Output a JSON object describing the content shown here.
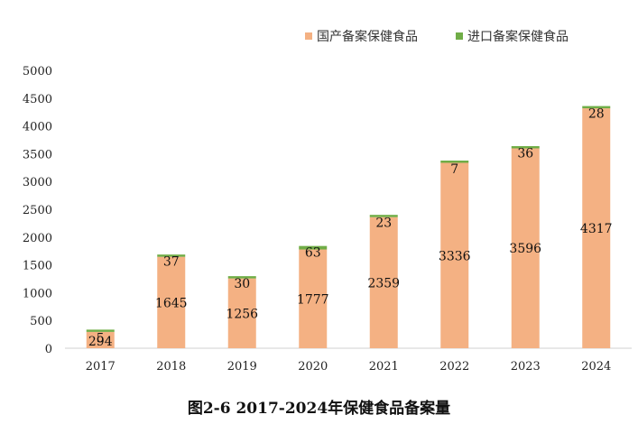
{
  "caption": "图2-6 2017-2024年保健食品备案量",
  "chart_data": {
    "type": "bar",
    "stacked": true,
    "categories": [
      "2017",
      "2018",
      "2019",
      "2020",
      "2021",
      "2022",
      "2023",
      "2024"
    ],
    "series": [
      {
        "name": "国产备案保健食品",
        "color": "#F4B183",
        "values": [
          294,
          1645,
          1256,
          1777,
          2359,
          3336,
          3596,
          4317
        ]
      },
      {
        "name": "进口备案保健食品",
        "color": "#70AD47",
        "values": [
          5,
          37,
          30,
          63,
          23,
          7,
          36,
          28
        ]
      }
    ],
    "ylim": [
      0,
      5000
    ],
    "yticks": [
      0,
      500,
      1000,
      1500,
      2000,
      2500,
      3000,
      3500,
      4000,
      4500,
      5000
    ],
    "grid": false,
    "legend": "top-right",
    "title": "",
    "xlabel": "",
    "ylabel": ""
  }
}
